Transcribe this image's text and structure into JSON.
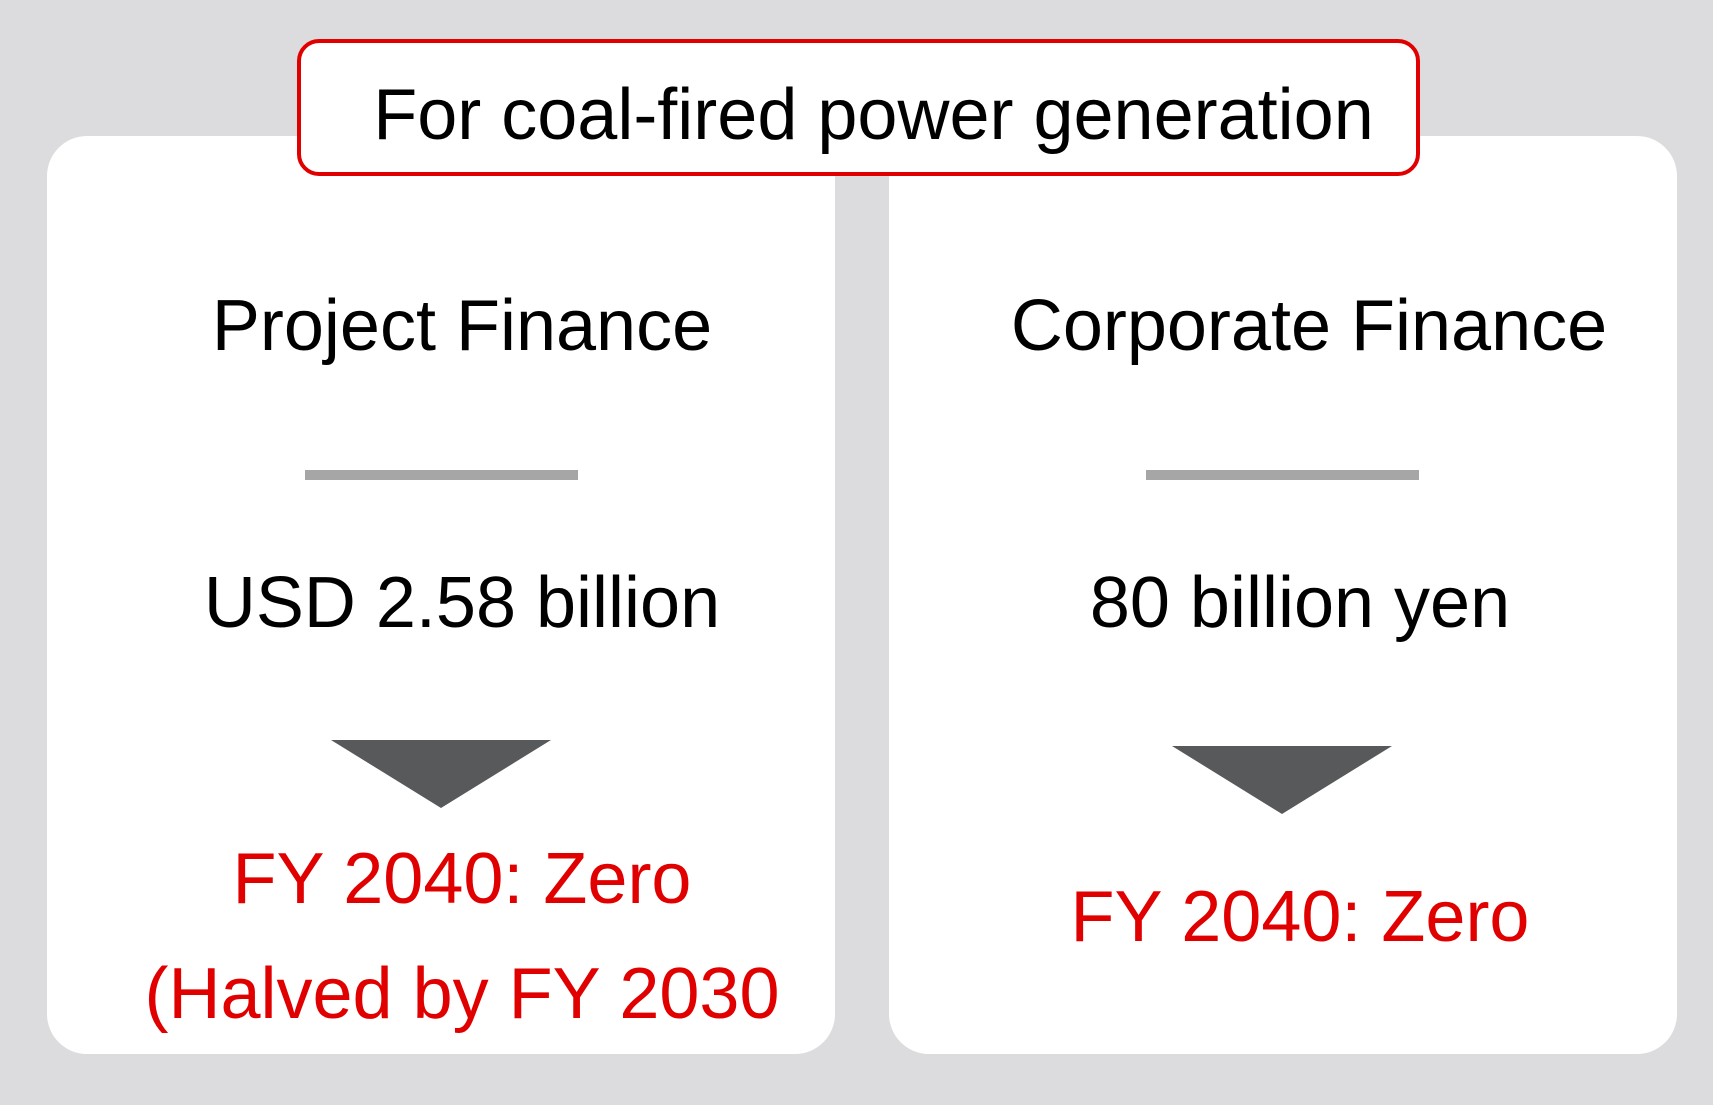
{
  "title": "For coal-fired power generation",
  "project_finance": {
    "heading": "Project Finance",
    "amount": "USD 2.58 billion",
    "target": "FY 2040: Zero",
    "note": "(Halved by FY 2030"
  },
  "corporate_finance": {
    "heading": "Corporate Finance",
    "amount": "80 billion yen",
    "target": "FY 2040: Zero"
  },
  "colors": {
    "accent_red": "#e00000",
    "arrow_gray": "#58595b",
    "divider_gray": "#a6a6a6",
    "background": "#dcdcde"
  },
  "icons": [
    "down-triangle-arrow-icon"
  ]
}
